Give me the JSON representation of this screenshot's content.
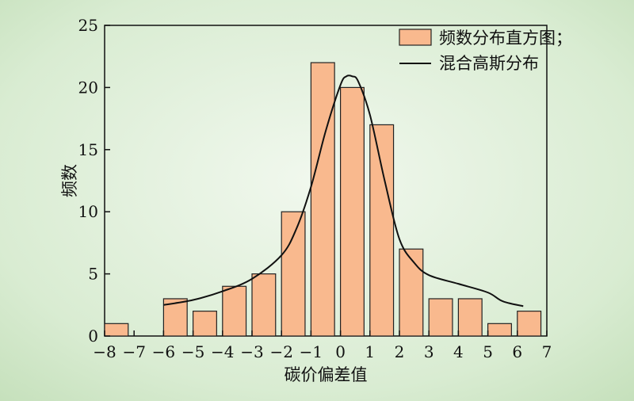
{
  "chart_data": {
    "type": "bar",
    "xlabel": "碳价偏差值",
    "ylabel": "频数",
    "xlim": [
      -8,
      7
    ],
    "ylim": [
      0,
      25
    ],
    "x_ticks": [
      "−8",
      "−7",
      "−6",
      "−5",
      "−4",
      "−3",
      "−2",
      "−1",
      "0",
      "1",
      "2",
      "3",
      "4",
      "5",
      "6",
      "7"
    ],
    "y_ticks": [
      "0",
      "5",
      "10",
      "15",
      "20",
      "25"
    ],
    "legend_position": "top-right",
    "colors": {
      "bar_fill": "#F9B98E",
      "bar_stroke": "#222222",
      "line": "#111111",
      "background": "#D3E8CB"
    },
    "series": [
      {
        "name": "频数分布直方图；",
        "type": "bar",
        "bin_width": 0.8,
        "x": [
          -7.6,
          -5.6,
          -4.6,
          -3.6,
          -2.6,
          -1.6,
          -0.6,
          0.4,
          1.4,
          2.4,
          3.4,
          4.4,
          5.4,
          6.4
        ],
        "values": [
          1,
          3,
          2,
          4,
          5,
          10,
          22,
          20,
          17,
          7,
          3,
          3,
          1,
          2
        ]
      },
      {
        "name": "混合高斯分布",
        "type": "line",
        "x": [
          -6.0,
          -5.0,
          -4.0,
          -3.0,
          -2.0,
          -1.5,
          -1.0,
          -0.5,
          0.0,
          0.2,
          0.4,
          0.6,
          1.0,
          1.5,
          2.0,
          2.5,
          3.0,
          4.0,
          5.0,
          5.5,
          6.2
        ],
        "values": [
          2.5,
          2.9,
          3.6,
          4.6,
          6.5,
          8.6,
          12.0,
          16.5,
          20.2,
          20.9,
          20.9,
          20.5,
          17.8,
          12.5,
          7.8,
          5.9,
          4.9,
          4.2,
          3.5,
          2.8,
          2.4
        ]
      }
    ]
  }
}
